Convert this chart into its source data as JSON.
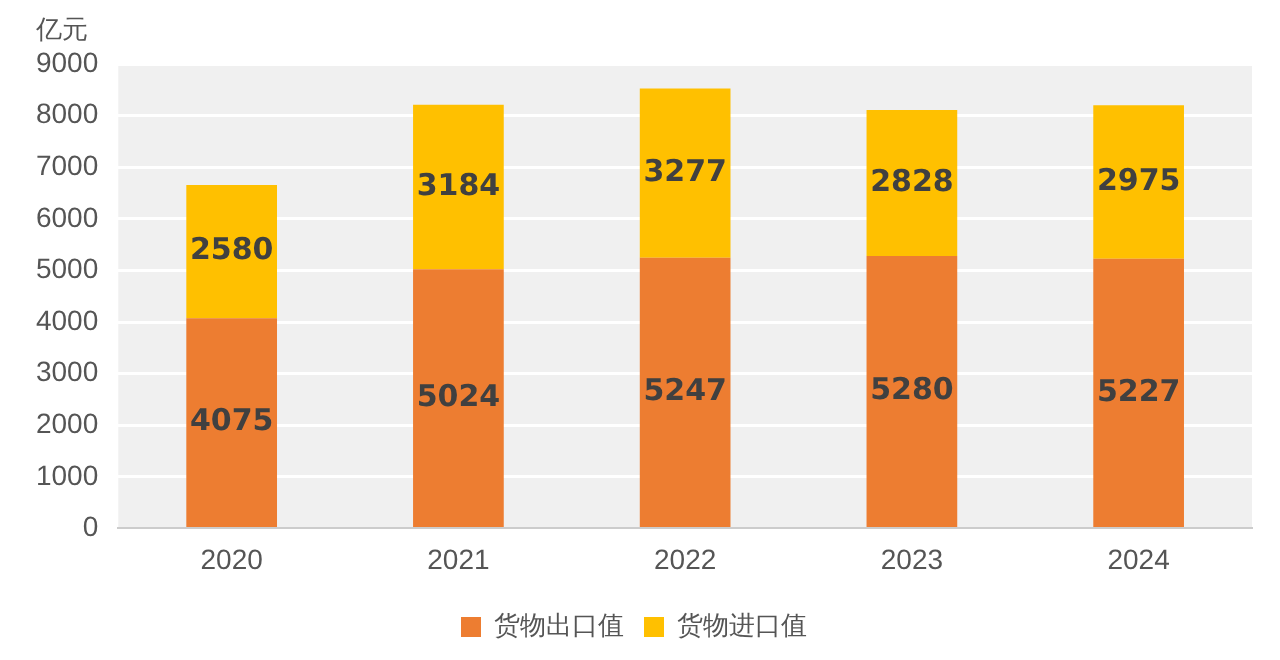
{
  "chart_data": {
    "type": "bar",
    "ylabel": "亿元",
    "categories": [
      "2020",
      "2021",
      "2022",
      "2023",
      "2024"
    ],
    "stacked": true,
    "series": [
      {
        "name": "货物出口值",
        "color": "#ed7d31",
        "values": [
          4075,
          5024,
          5247,
          5280,
          5227
        ]
      },
      {
        "name": "货物进口值",
        "color": "#ffc000",
        "values": [
          2580,
          3184,
          3277,
          2828,
          2975
        ]
      }
    ],
    "ylim": [
      0,
      9000
    ],
    "yticks": [
      0,
      1000,
      2000,
      3000,
      4000,
      5000,
      6000,
      7000,
      8000,
      9000
    ],
    "grid": "y",
    "legend": "bottom",
    "data_labels": true
  }
}
